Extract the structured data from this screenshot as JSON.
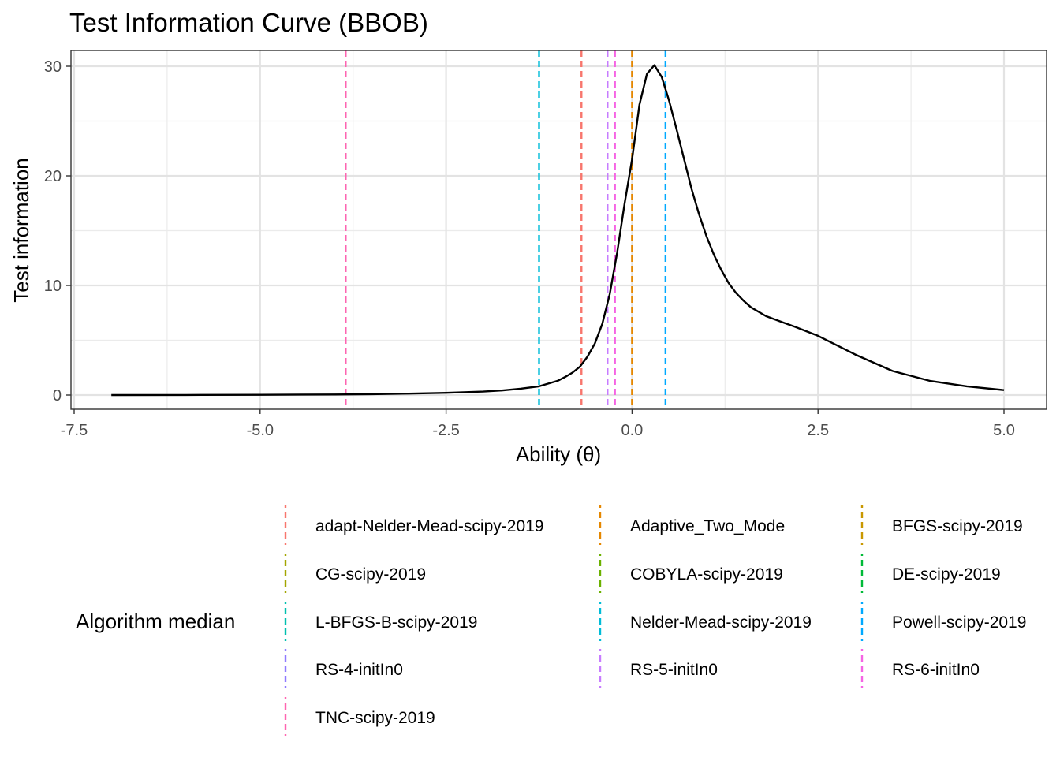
{
  "chart_data": {
    "type": "line",
    "title": "Test Information Curve (BBOB)",
    "xlabel": "Ability (θ)",
    "ylabel": "Test information",
    "xlim": [
      -7.5,
      5.0
    ],
    "ylim": [
      0,
      30
    ],
    "grid": true,
    "x_ticks": [
      -7.5,
      -5.0,
      -2.5,
      0.0,
      2.5,
      5.0
    ],
    "x_tick_labels": [
      "-7.5",
      "-5.0",
      "-2.5",
      "0.0",
      "2.5",
      "5.0"
    ],
    "y_ticks": [
      0,
      10,
      20,
      30
    ],
    "y_tick_labels": [
      "0",
      "10",
      "20",
      "30"
    ],
    "curve": {
      "color": "#000000",
      "x": [
        -7.0,
        -6.0,
        -5.0,
        -4.0,
        -3.5,
        -3.0,
        -2.5,
        -2.0,
        -1.75,
        -1.5,
        -1.25,
        -1.0,
        -0.9,
        -0.8,
        -0.7,
        -0.6,
        -0.5,
        -0.4,
        -0.3,
        -0.2,
        -0.1,
        0.0,
        0.1,
        0.2,
        0.3,
        0.4,
        0.5,
        0.6,
        0.7,
        0.8,
        0.9,
        1.0,
        1.1,
        1.2,
        1.3,
        1.4,
        1.5,
        1.6,
        1.8,
        2.0,
        2.2,
        2.5,
        3.0,
        3.5,
        4.0,
        4.5,
        5.0
      ],
      "y": [
        0.0,
        0.01,
        0.02,
        0.05,
        0.08,
        0.13,
        0.2,
        0.32,
        0.42,
        0.58,
        0.8,
        1.3,
        1.65,
        2.05,
        2.6,
        3.5,
        4.7,
        6.5,
        9.2,
        13.0,
        17.5,
        21.5,
        26.5,
        29.3,
        30.1,
        29.0,
        26.8,
        24.2,
        21.5,
        18.8,
        16.5,
        14.5,
        12.8,
        11.4,
        10.2,
        9.3,
        8.6,
        8.0,
        7.2,
        6.7,
        6.2,
        5.4,
        3.7,
        2.2,
        1.3,
        0.8,
        0.45
      ]
    },
    "legend": {
      "title": "Algorithm median",
      "position": "bottom",
      "entries": [
        {
          "name": "adapt-Nelder-Mead-scipy-2019",
          "color": "#F8766D",
          "x": -0.68
        },
        {
          "name": "Adaptive_Two_Mode",
          "color": "#E58700",
          "x": 0.0
        },
        {
          "name": "BFGS-scipy-2019",
          "color": "#C99800",
          "x": -3.85
        },
        {
          "name": "CG-scipy-2019",
          "color": "#A3A500",
          "x": -3.85
        },
        {
          "name": "COBYLA-scipy-2019",
          "color": "#6BB100",
          "x": -3.85
        },
        {
          "name": "DE-scipy-2019",
          "color": "#00BA38",
          "x": -3.85
        },
        {
          "name": "L-BFGS-B-scipy-2019",
          "color": "#00C0AF",
          "x": -3.85
        },
        {
          "name": "Nelder-Mead-scipy-2019",
          "color": "#00BCD8",
          "x": -1.25
        },
        {
          "name": "Powell-scipy-2019",
          "color": "#00A9FF",
          "x": 0.45
        },
        {
          "name": "RS-4-initIn0",
          "color": "#8F7AFF",
          "x": -3.85
        },
        {
          "name": "RS-5-initIn0",
          "color": "#C77CFF",
          "x": -0.33
        },
        {
          "name": "RS-6-initIn0",
          "color": "#F564E3",
          "x": -0.23
        },
        {
          "name": "TNC-scipy-2019",
          "color": "#FF64B0",
          "x": -3.85
        }
      ]
    }
  }
}
